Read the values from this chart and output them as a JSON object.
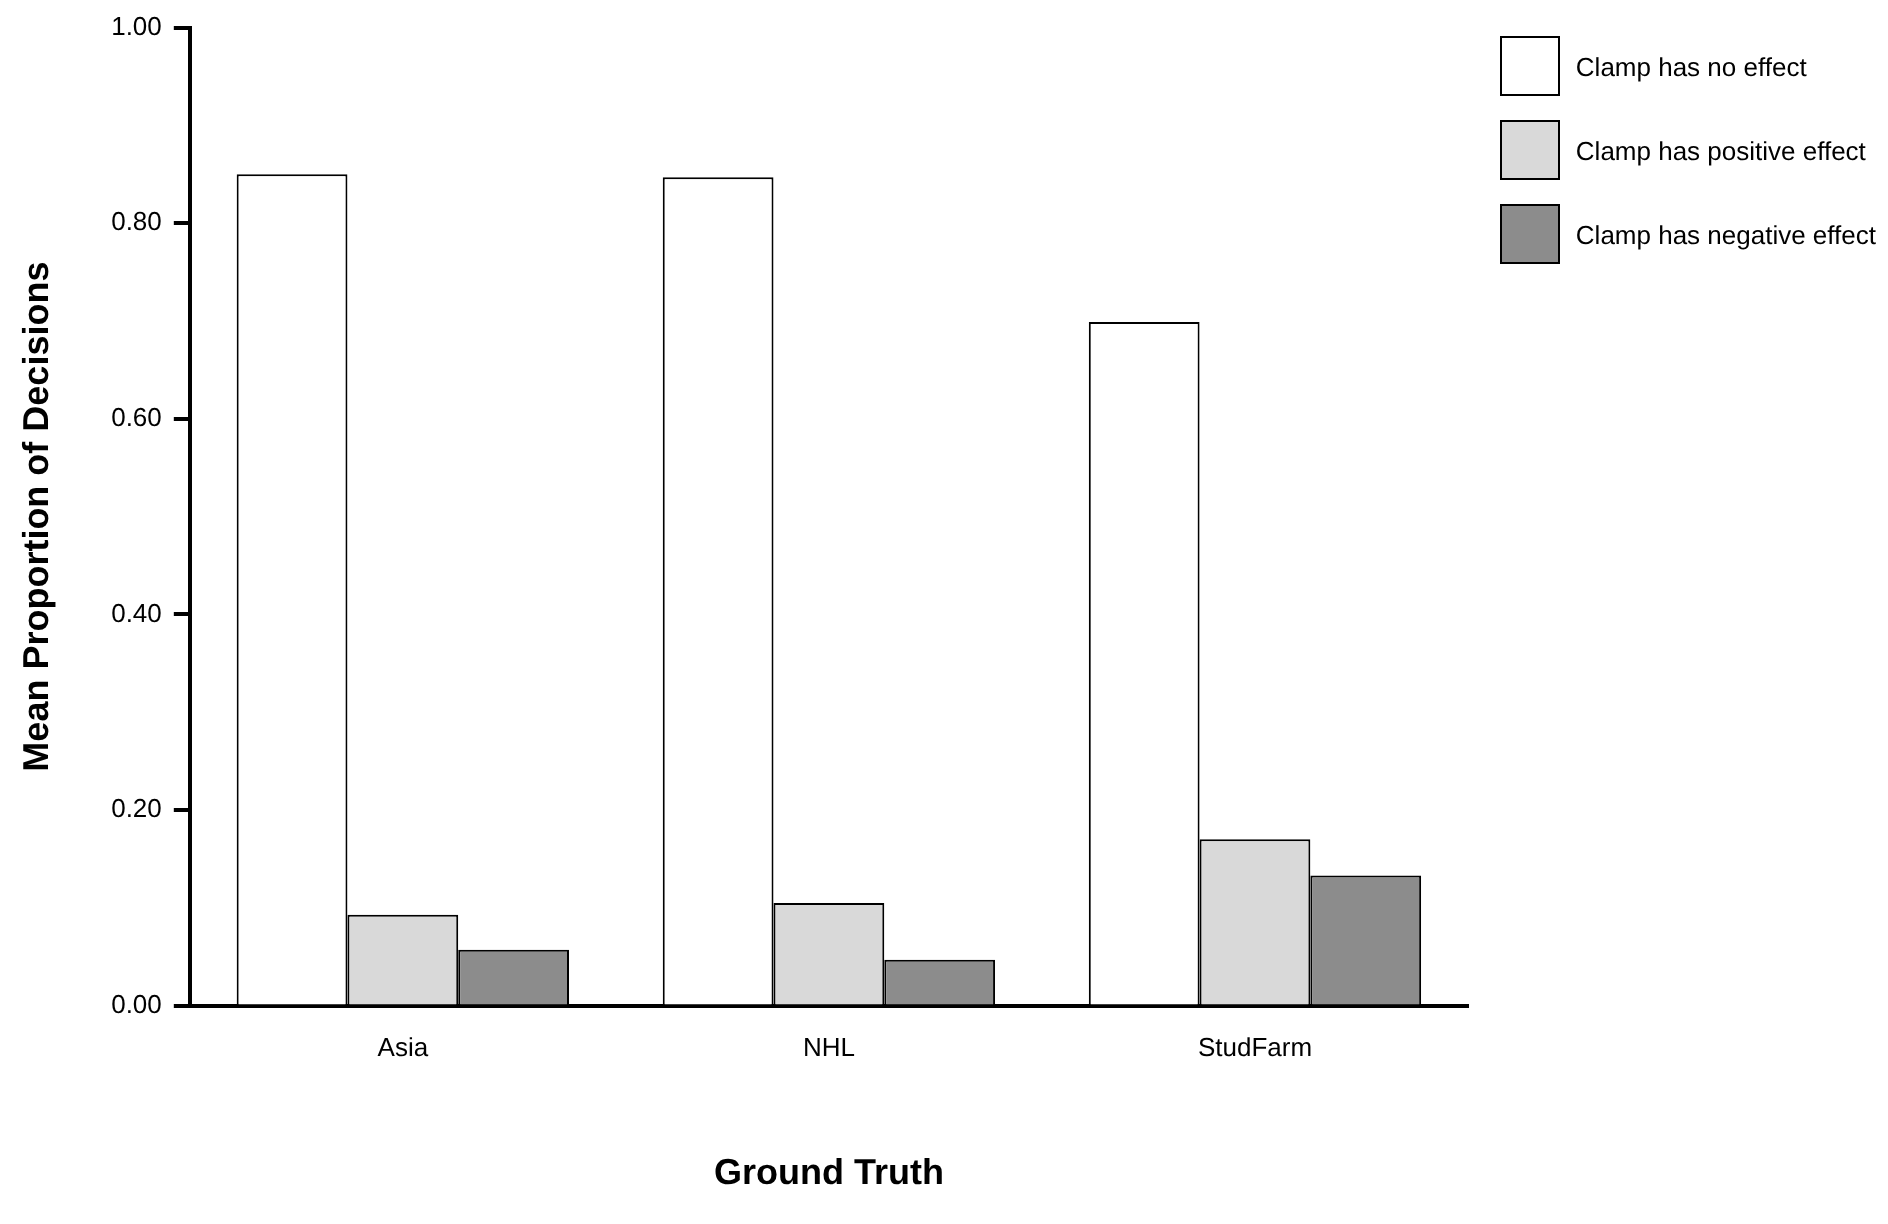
{
  "chart_data": {
    "type": "bar",
    "xlabel": "Ground Truth",
    "ylabel": "Mean Proportion of Decisions",
    "categories": [
      "Asia",
      "NHL",
      "StudFarm"
    ],
    "series": [
      {
        "name": "Clamp has no effect",
        "color": "#ffffff",
        "values": [
          0.85,
          0.847,
          0.699
        ]
      },
      {
        "name": "Clamp has positive effect",
        "color": "#d9d9d9",
        "values": [
          0.093,
          0.105,
          0.17
        ]
      },
      {
        "name": "Clamp has negative effect",
        "color": "#8c8c8c",
        "values": [
          0.057,
          0.047,
          0.133
        ]
      }
    ],
    "ylim": [
      0,
      1
    ],
    "yticks": [
      {
        "value": 0,
        "label": "0.00"
      },
      {
        "value": 0.2,
        "label": "0.20"
      },
      {
        "value": 0.4,
        "label": "0.40"
      },
      {
        "value": 0.6,
        "label": "0.60"
      },
      {
        "value": 0.8,
        "label": "0.80"
      },
      {
        "value": 1,
        "label": "1.00"
      }
    ],
    "grid": false,
    "legend": "top right"
  }
}
